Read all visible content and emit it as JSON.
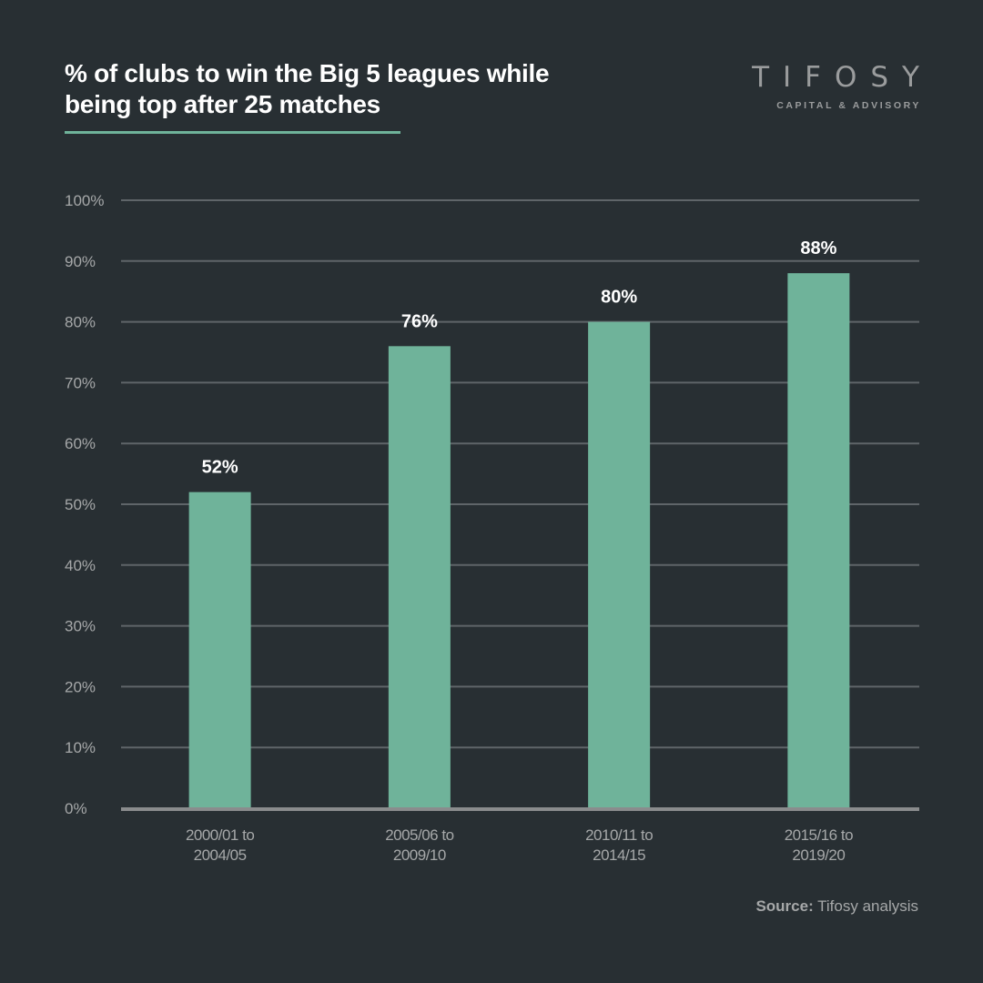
{
  "header": {
    "title_line1": "% of clubs to win the Big 5 leagues while",
    "title_line2": "being top after 25 matches",
    "accent_color": "#6fb39a"
  },
  "logo": {
    "name": "TIFOSY",
    "subtitle": "CAPITAL & ADVISORY"
  },
  "footer": {
    "source_label": "Source:",
    "source_text": " Tifosy analysis"
  },
  "chart_data": {
    "type": "bar",
    "title": "% of clubs to win the Big 5 leagues while being top after 25 matches",
    "xlabel": "",
    "ylabel": "",
    "categories": [
      [
        "2000/01 to",
        "2004/05"
      ],
      [
        "2005/06 to",
        "2009/10"
      ],
      [
        "2010/11 to",
        "2014/15"
      ],
      [
        "2015/16 to",
        "2019/20"
      ]
    ],
    "values": [
      52,
      76,
      80,
      88
    ],
    "data_labels": [
      "52%",
      "76%",
      "80%",
      "88%"
    ],
    "ylim": [
      0,
      100
    ],
    "yticks": [
      0,
      10,
      20,
      30,
      40,
      50,
      60,
      70,
      80,
      90,
      100
    ],
    "ytick_labels": [
      "0%",
      "10%",
      "20%",
      "30%",
      "40%",
      "50%",
      "60%",
      "70%",
      "80%",
      "90%",
      "100%"
    ],
    "grid": true,
    "legend": "none",
    "bar_color": "#6fb39a"
  }
}
